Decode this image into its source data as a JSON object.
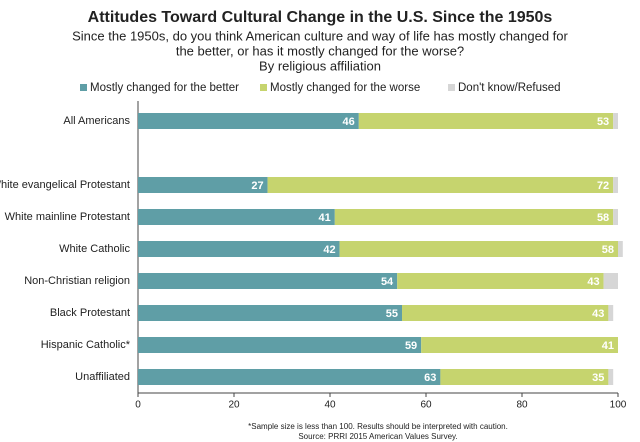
{
  "chart_data": {
    "type": "stacked-bar-horizontal",
    "title": "Attitudes Toward Cultural Change in the U.S. Since the 1950s",
    "subtitle": [
      "Since the 1950s, do you think American culture and way of life has mostly changed for",
      "the better, or has it mostly changed for the worse?",
      "By religious affiliation"
    ],
    "categories": [
      "All Americans",
      null,
      "White evangelical Protestant",
      "White mainline Protestant",
      "White Catholic",
      "Non-Christian religion",
      "Black Protestant",
      "Hispanic Catholic*",
      "Unaffiliated"
    ],
    "series": [
      {
        "name": "Mostly changed for the better",
        "color": "#5f9ea6",
        "values": [
          46,
          null,
          27,
          41,
          42,
          54,
          55,
          59,
          63
        ]
      },
      {
        "name": "Mostly changed for the worse",
        "color": "#c6d46e",
        "values": [
          53,
          null,
          72,
          58,
          58,
          43,
          43,
          41,
          35
        ]
      },
      {
        "name": "Don't know/Refused",
        "color": "#d6d6d6",
        "values": [
          1,
          null,
          1,
          1,
          1,
          3,
          1,
          0,
          1
        ]
      }
    ],
    "xlim": [
      0,
      100
    ],
    "xticks": [
      0,
      20,
      40,
      60,
      80,
      100
    ],
    "notes": [
      "*Sample size is less than 100. Results should be interpreted with caution.",
      "Source: PRRI 2015 American Values Survey."
    ]
  }
}
